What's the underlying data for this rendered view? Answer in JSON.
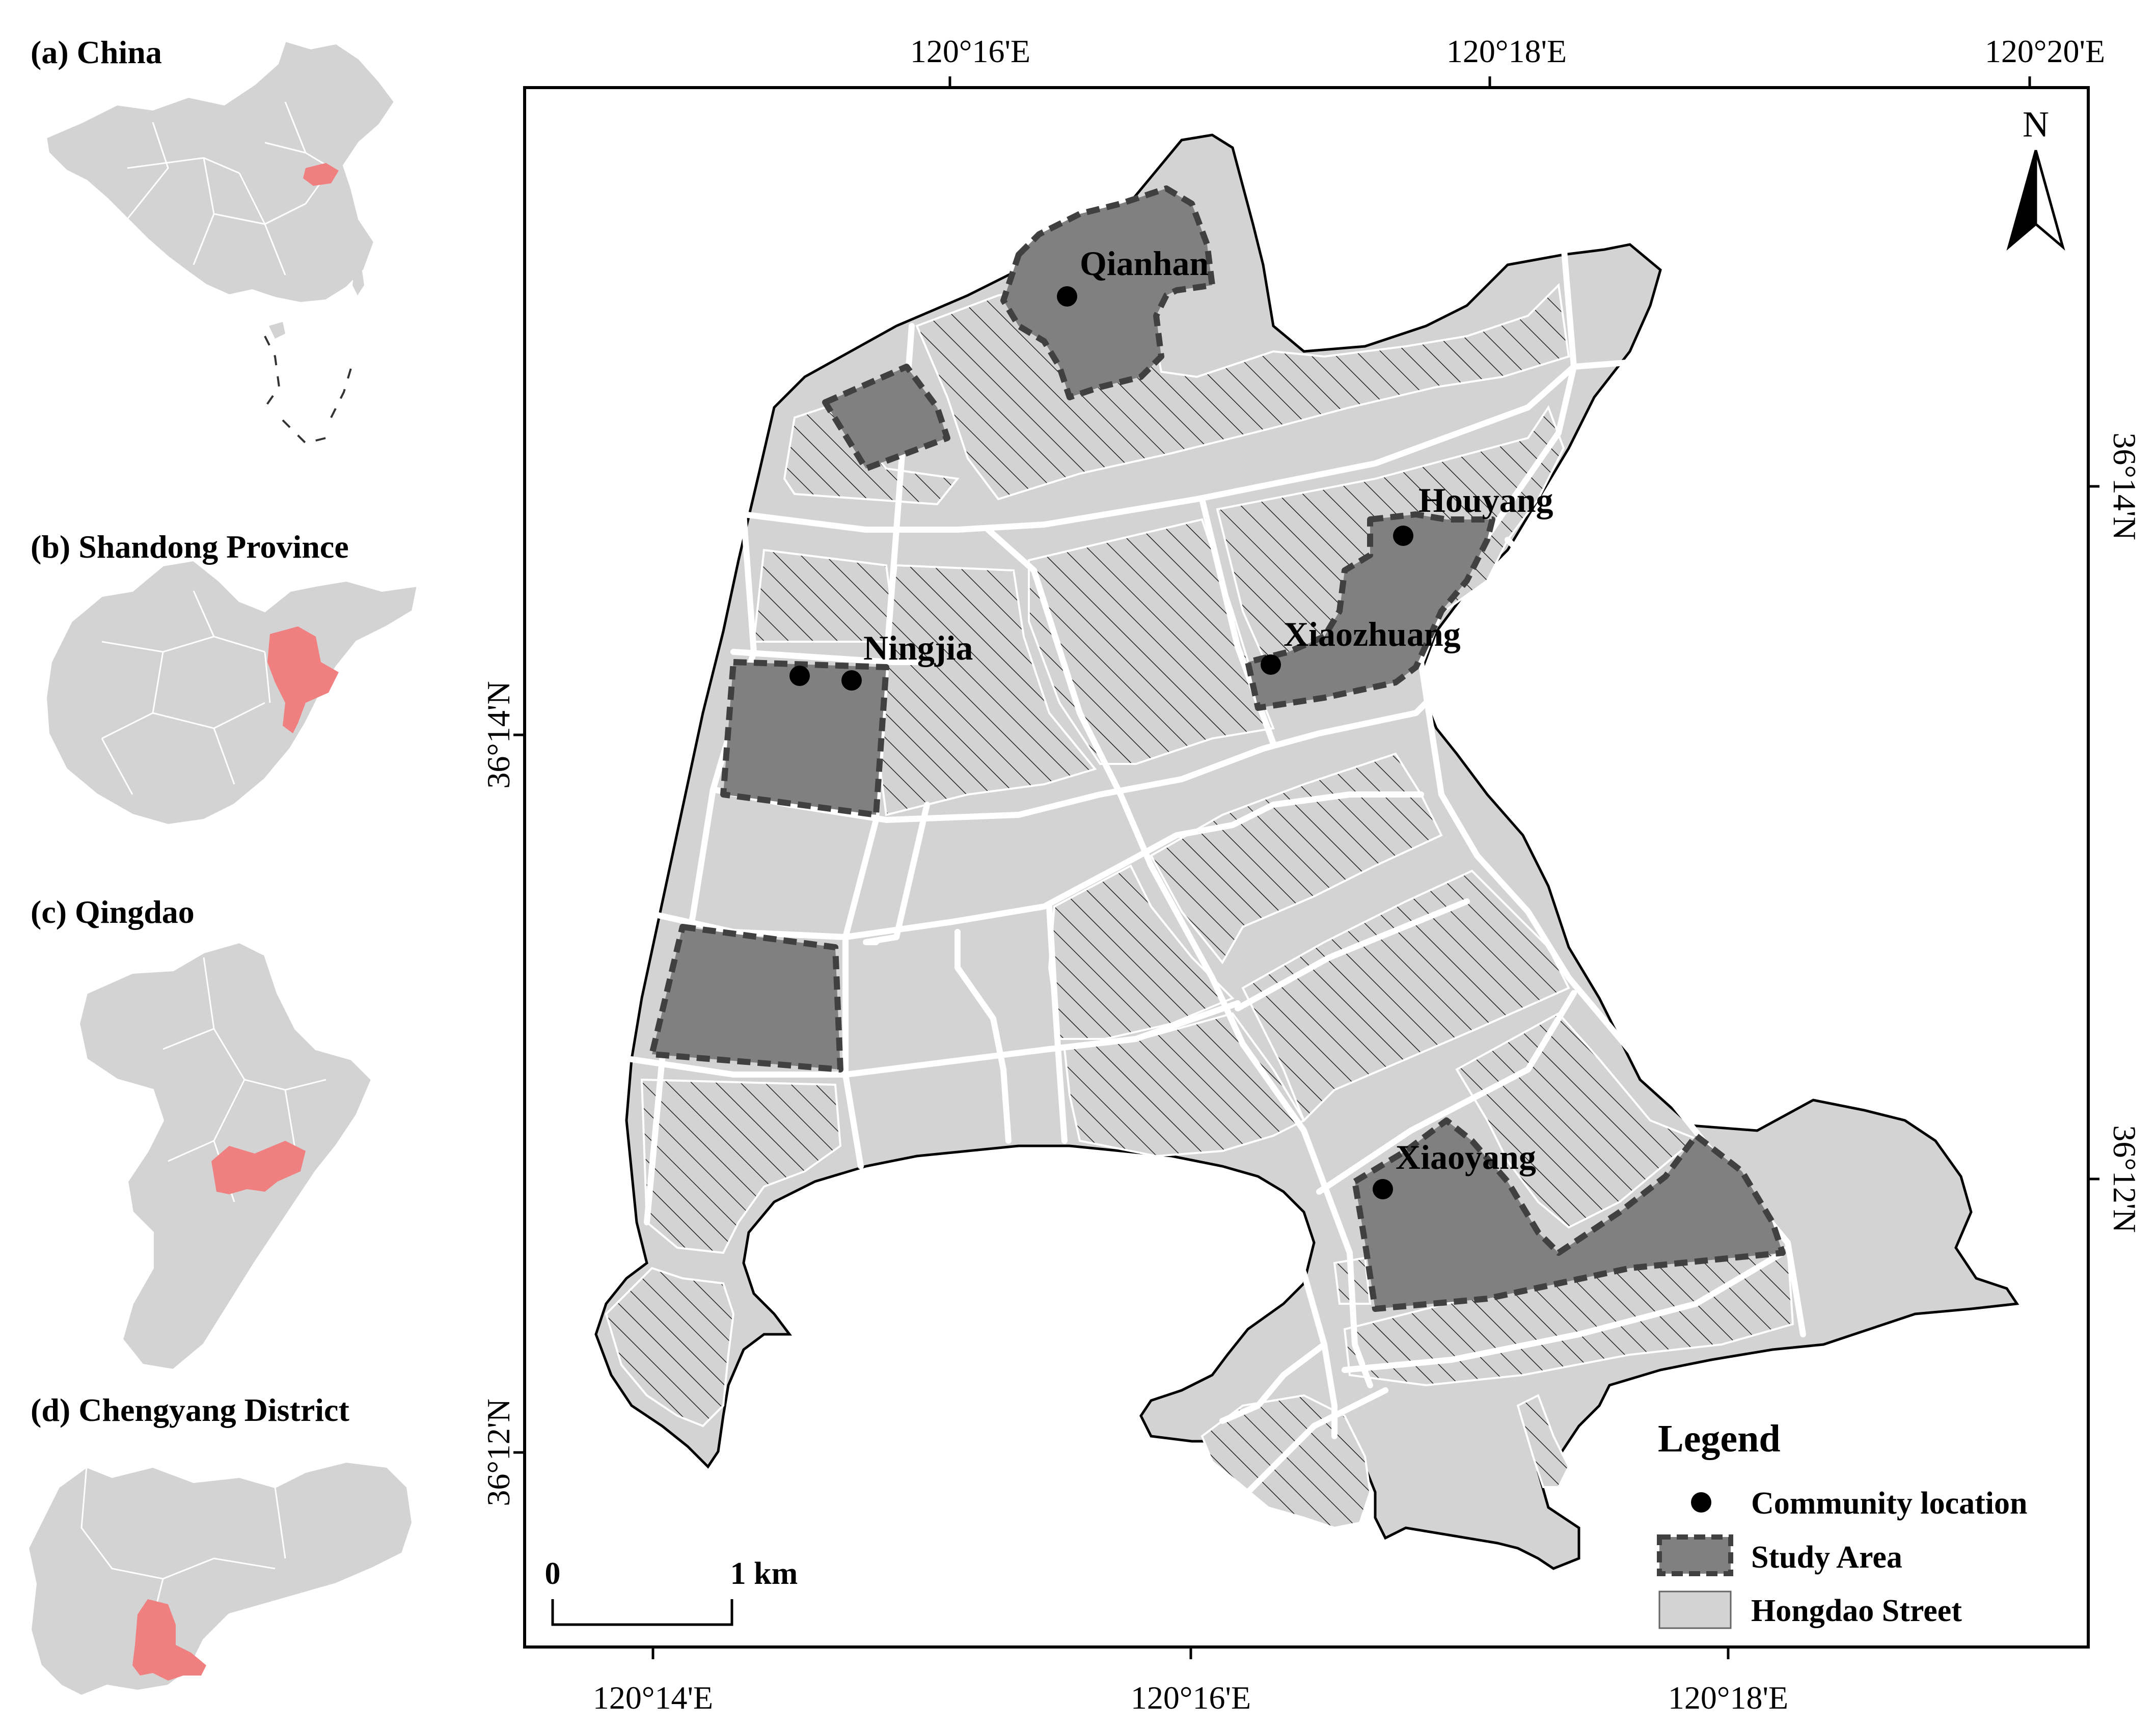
{
  "colors": {
    "land": "#d3d3d3",
    "study_area": "#808080",
    "highlight": "#f08080",
    "road": "#ffffff",
    "boundary": "#000000",
    "study_border": "#404040"
  },
  "insets": [
    {
      "id": "a",
      "title": "(a) China"
    },
    {
      "id": "b",
      "title": "(b) Shandong Province"
    },
    {
      "id": "c",
      "title": "(c) Qingdao"
    },
    {
      "id": "d",
      "title": "(d) Chengyang District"
    }
  ],
  "map": {
    "top_longitudes": [
      "120°16'E",
      "120°18'E",
      "120°20'E"
    ],
    "bottom_longitudes": [
      "120°14'E",
      "120°16'E",
      "120°18'E"
    ],
    "left_latitudes": [
      "36°14'N",
      "36°12'N"
    ],
    "right_latitudes": [
      "36°14'N",
      "36°12'N"
    ],
    "north_arrow": {
      "label": "N",
      "icon": "north-arrow-icon"
    },
    "scale_bar": {
      "start": "0",
      "end": "1 km"
    },
    "communities": [
      "Qianhan",
      "Houyang",
      "Xiaozhuang",
      "Ningjia",
      "Xiaoyang"
    ]
  },
  "legend": {
    "title": "Legend",
    "items": [
      {
        "label": "Community location",
        "icon": "dot-icon"
      },
      {
        "label": "Study Area",
        "icon": "study-area-swatch"
      },
      {
        "label": "Hongdao Street",
        "icon": "hongdao-swatch"
      }
    ]
  }
}
